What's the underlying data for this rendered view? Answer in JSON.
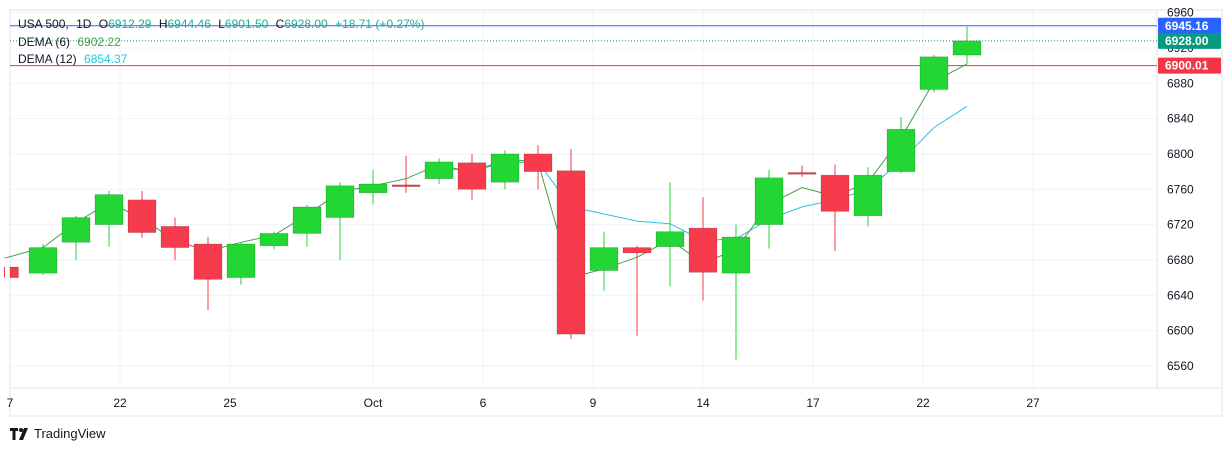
{
  "header": {
    "symbol": "USA 500",
    "interval": "1D",
    "o_label": "O",
    "open": "6912.29",
    "h_label": "H",
    "high": "6944.46",
    "l_label": "L",
    "low": "6901.50",
    "c_label": "C",
    "close": "6928.00",
    "change": "+18.71 (+0.27%)"
  },
  "indicators": [
    {
      "label": "DEMA (6)",
      "value": "6902.22",
      "color": "#43a047"
    },
    {
      "label": "DEMA (12)",
      "value": "6854.37",
      "color": "#26c6da"
    }
  ],
  "watermark": "TradingView",
  "price_labels": {
    "high": {
      "value": 6945.16,
      "text": "6945.16",
      "color": "#2962ff"
    },
    "last": {
      "value": 6928.0,
      "text": "6928.00",
      "color": "#089981"
    },
    "level": {
      "value": 6900.01,
      "text": "6900.01",
      "color": "#f23645"
    }
  },
  "chart_data": {
    "type": "candlestick",
    "ylim": [
      6535,
      6963
    ],
    "y_ticks": [
      6960,
      6920,
      6880,
      6840,
      6800,
      6760,
      6720,
      6680,
      6640,
      6600,
      6560
    ],
    "x_ticks": [
      {
        "index": 0,
        "label": "7"
      },
      {
        "index": 10,
        "label": "22"
      },
      {
        "index": 20,
        "label": "25"
      },
      {
        "index": 33,
        "label": "Oct"
      },
      {
        "index": 43,
        "label": "6"
      },
      {
        "index": 53,
        "label": "9"
      },
      {
        "index": 63,
        "label": "14"
      },
      {
        "index": 73,
        "label": "17"
      },
      {
        "index": 83,
        "label": "22"
      },
      {
        "index": 93,
        "label": "27"
      }
    ],
    "candles": [
      {
        "i": -0.5,
        "o": 6672,
        "h": 6672,
        "l": 6660,
        "c": 6660
      },
      {
        "i": 3,
        "o": 6665,
        "h": 6698,
        "l": 6663,
        "c": 6694
      },
      {
        "i": 6,
        "o": 6700,
        "h": 6730,
        "l": 6680,
        "c": 6728
      },
      {
        "i": 9,
        "o": 6720,
        "h": 6758,
        "l": 6695,
        "c": 6754
      },
      {
        "i": 12,
        "o": 6748,
        "h": 6758,
        "l": 6705,
        "c": 6711
      },
      {
        "i": 15,
        "o": 6718,
        "h": 6728,
        "l": 6680,
        "c": 6694
      },
      {
        "i": 18,
        "o": 6698,
        "h": 6706,
        "l": 6623,
        "c": 6658
      },
      {
        "i": 21,
        "o": 6660,
        "h": 6700,
        "l": 6652,
        "c": 6698
      },
      {
        "i": 24,
        "o": 6696,
        "h": 6712,
        "l": 6692,
        "c": 6710
      },
      {
        "i": 27,
        "o": 6710,
        "h": 6742,
        "l": 6695,
        "c": 6740
      },
      {
        "i": 30,
        "o": 6728,
        "h": 6768,
        "l": 6680,
        "c": 6764
      },
      {
        "i": 33,
        "o": 6756,
        "h": 6782,
        "l": 6743,
        "c": 6766
      },
      {
        "i": 36,
        "o": 6765,
        "h": 6798,
        "l": 6756,
        "c": 6763
      },
      {
        "i": 39,
        "o": 6772,
        "h": 6795,
        "l": 6766,
        "c": 6791
      },
      {
        "i": 42,
        "o": 6790,
        "h": 6800,
        "l": 6748,
        "c": 6760
      },
      {
        "i": 45,
        "o": 6768,
        "h": 6804,
        "l": 6760,
        "c": 6800
      },
      {
        "i": 48,
        "o": 6800,
        "h": 6810,
        "l": 6760,
        "c": 6780
      },
      {
        "i": 51,
        "o": 6781,
        "h": 6806,
        "l": 6590,
        "c": 6596
      },
      {
        "i": 54,
        "o": 6668,
        "h": 6712,
        "l": 6645,
        "c": 6694
      },
      {
        "i": 57,
        "o": 6694,
        "h": 6696,
        "l": 6594,
        "c": 6688
      },
      {
        "i": 60,
        "o": 6695,
        "h": 6768,
        "l": 6650,
        "c": 6712
      },
      {
        "i": 63,
        "o": 6716,
        "h": 6751,
        "l": 6634,
        "c": 6666
      },
      {
        "i": 66,
        "o": 6665,
        "h": 6720,
        "l": 6567,
        "c": 6706
      },
      {
        "i": 69,
        "o": 6720,
        "h": 6782,
        "l": 6693,
        "c": 6773
      },
      {
        "i": 72,
        "o": 6779,
        "h": 6787,
        "l": 6774,
        "c": 6777
      },
      {
        "i": 75,
        "o": 6776,
        "h": 6788,
        "l": 6690,
        "c": 6735
      },
      {
        "i": 78,
        "o": 6730,
        "h": 6785,
        "l": 6718,
        "c": 6776
      },
      {
        "i": 81,
        "o": 6780,
        "h": 6842,
        "l": 6778,
        "c": 6828
      },
      {
        "i": 84,
        "o": 6873,
        "h": 6912,
        "l": 6870,
        "c": 6910
      },
      {
        "i": 87,
        "o": 6912,
        "h": 6944,
        "l": 6902,
        "c": 6928
      }
    ],
    "dema_6": [
      [
        -0.5,
        6682
      ],
      [
        3,
        6694
      ],
      [
        6,
        6722
      ],
      [
        9,
        6745
      ],
      [
        12,
        6727
      ],
      [
        15,
        6702
      ],
      [
        18,
        6690
      ],
      [
        21,
        6700
      ],
      [
        24,
        6708
      ],
      [
        27,
        6731
      ],
      [
        30,
        6757
      ],
      [
        33,
        6764
      ],
      [
        36,
        6772
      ],
      [
        39,
        6788
      ],
      [
        42,
        6779
      ],
      [
        45,
        6794
      ],
      [
        48,
        6791
      ],
      [
        51,
        6660
      ],
      [
        54,
        6670
      ],
      [
        57,
        6683
      ],
      [
        60,
        6703
      ],
      [
        63,
        6676
      ],
      [
        66,
        6692
      ],
      [
        69,
        6743
      ],
      [
        72,
        6762
      ],
      [
        75,
        6752
      ],
      [
        78,
        6768
      ],
      [
        81,
        6818
      ],
      [
        84,
        6882
      ],
      [
        87,
        6902
      ]
    ],
    "dema_12": [
      [
        39,
        6784
      ],
      [
        42,
        6781
      ],
      [
        45,
        6790
      ],
      [
        48,
        6791
      ],
      [
        51,
        6740
      ],
      [
        54,
        6732
      ],
      [
        57,
        6724
      ],
      [
        60,
        6721
      ],
      [
        63,
        6702
      ],
      [
        66,
        6704
      ],
      [
        69,
        6726
      ],
      [
        72,
        6740
      ],
      [
        75,
        6748
      ],
      [
        78,
        6760
      ],
      [
        81,
        6792
      ],
      [
        84,
        6830
      ],
      [
        87,
        6854
      ]
    ],
    "colors": {
      "up": "#22d633",
      "down": "#f63c4c",
      "grid": "#f0f3fa"
    }
  }
}
